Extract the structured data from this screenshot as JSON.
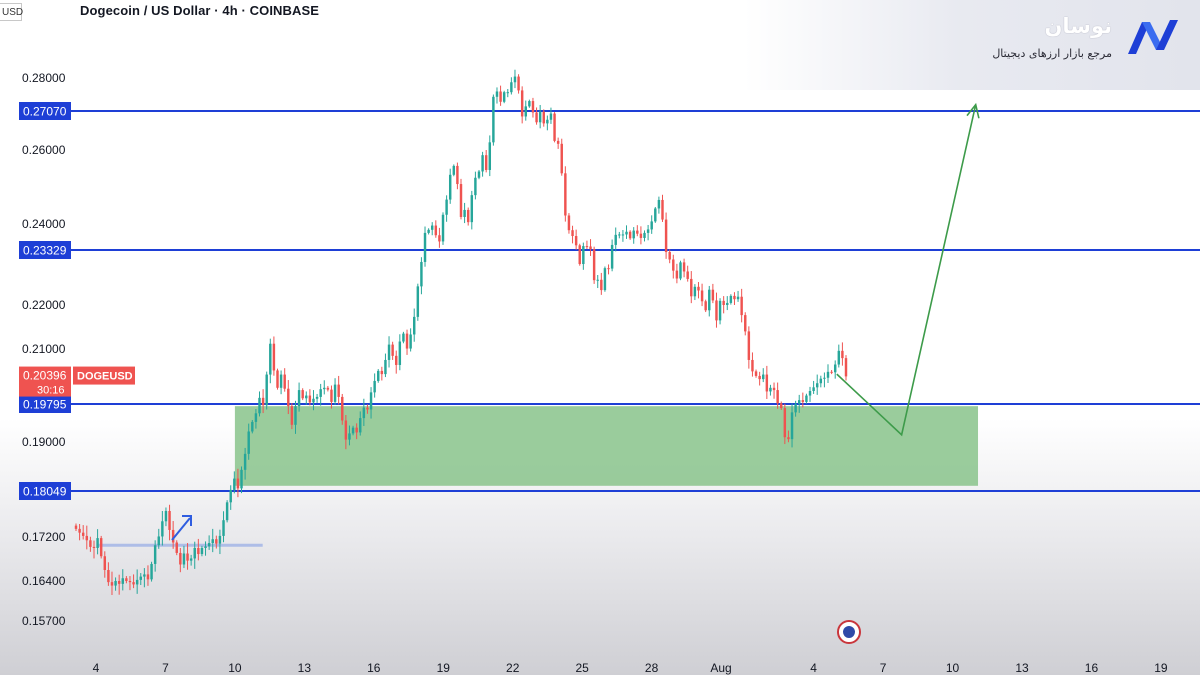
{
  "header": {
    "title": "Dogecoin / US Dollar · 4h · COINBASE",
    "corner_label": "USD"
  },
  "brand": {
    "name": "نوسان",
    "subtitle": "مرجع بازار ارزهای دیجیتال",
    "logo_icon": "nosan-logo-icon"
  },
  "colors": {
    "bull": "#26a69a",
    "bear": "#ef5350",
    "level_line": "#1e3fd6",
    "zone_fill": "#8fc791",
    "projection": "#3d9b4a",
    "price_tag": "#ef5350"
  },
  "chart_data": {
    "type": "candlestick",
    "title": "Dogecoin / US Dollar · 4h · COINBASE",
    "y_axis": {
      "ticks": [
        "0.28000",
        "0.26000",
        "0.24000",
        "0.22000",
        "0.21000",
        "0.19000",
        "0.17200",
        "0.16400",
        "0.15700"
      ],
      "tick_values": [
        0.28,
        0.26,
        0.24,
        0.22,
        0.21,
        0.19,
        0.172,
        0.164,
        0.157
      ]
    },
    "x_axis": {
      "ticks": [
        "4",
        "7",
        "10",
        "13",
        "16",
        "19",
        "22",
        "25",
        "28",
        "Aug",
        "4",
        "7",
        "10",
        "13",
        "16",
        "19"
      ],
      "day_index": [
        4,
        7,
        10,
        13,
        16,
        19,
        22,
        25,
        28,
        31,
        35,
        38,
        41,
        44,
        47,
        50
      ]
    },
    "levels": [
      {
        "label": "0.27070",
        "value": 0.2707
      },
      {
        "label": "0.23329",
        "value": 0.23329
      },
      {
        "label": "0.19795",
        "value": 0.19795
      },
      {
        "label": "0.18049",
        "value": 0.18049
      }
    ],
    "current_price": {
      "symbol": "DOGEUSD",
      "price": "0.20396",
      "countdown": "30:16",
      "value": 0.20396
    },
    "demand_zone": {
      "from_day": 10.0,
      "to_day": 42.1,
      "top": 0.1975,
      "bottom": 0.1815
    },
    "minor_level": {
      "value": 0.1705,
      "from_day": 4.1,
      "to_day": 11.2
    },
    "projection": [
      {
        "day": 36.0,
        "price": 0.2045
      },
      {
        "day": 38.8,
        "price": 0.1915
      },
      {
        "day": 42.0,
        "price": 0.2725
      }
    ],
    "candles_close": [
      0.1735,
      0.1728,
      0.1722,
      0.1714,
      0.1702,
      0.17,
      0.1718,
      0.1685,
      0.166,
      0.1638,
      0.1632,
      0.164,
      0.1635,
      0.1645,
      0.164,
      0.1638,
      0.1634,
      0.1642,
      0.1648,
      0.1652,
      0.1643,
      0.1671,
      0.1705,
      0.1721,
      0.1749,
      0.1768,
      0.1733,
      0.171,
      0.1691,
      0.167,
      0.169,
      0.1677,
      0.1681,
      0.17,
      0.1689,
      0.17,
      0.1703,
      0.1709,
      0.1716,
      0.1708,
      0.1722,
      0.1751,
      0.1784,
      0.1807,
      0.1829,
      0.181,
      0.1846,
      0.1877,
      0.1922,
      0.1942,
      0.196,
      0.1993,
      0.1977,
      0.2044,
      0.2112,
      0.2053,
      0.2015,
      0.2044,
      0.2013,
      0.1975,
      0.1936,
      0.1975,
      0.201,
      0.1992,
      0.1998,
      0.1983,
      0.1991,
      0.1995,
      0.2012,
      0.2015,
      0.2011,
      0.1984,
      0.2022,
      0.1995,
      0.1945,
      0.1905,
      0.1918,
      0.193,
      0.192,
      0.195,
      0.1972,
      0.1968,
      0.2005,
      0.203,
      0.2052,
      0.2045,
      0.2076,
      0.211,
      0.2085,
      0.2065,
      0.2117,
      0.2135,
      0.2101,
      0.2133,
      0.2173,
      0.2245,
      0.2304,
      0.2377,
      0.2385,
      0.2396,
      0.2371,
      0.2355,
      0.2425,
      0.2466,
      0.2533,
      0.2557,
      0.2508,
      0.2419,
      0.2438,
      0.2405,
      0.2478,
      0.2525,
      0.2542,
      0.2586,
      0.2546,
      0.2621,
      0.2747,
      0.2762,
      0.2733,
      0.276,
      0.276,
      0.2788,
      0.2804,
      0.2765,
      0.2692,
      0.272,
      0.2735,
      0.2703,
      0.2676,
      0.2705,
      0.2673,
      0.2683,
      0.27,
      0.2625,
      0.2617,
      0.2537,
      0.2423,
      0.2384,
      0.2369,
      0.2345,
      0.2299,
      0.2343,
      0.2342,
      0.2335,
      0.226,
      0.2261,
      0.2236,
      0.2289,
      0.2288,
      0.2346,
      0.2372,
      0.2373,
      0.2373,
      0.238,
      0.2363,
      0.2383,
      0.2375,
      0.2364,
      0.2377,
      0.2386,
      0.2407,
      0.2442,
      0.2465,
      0.2412,
      0.2328,
      0.231,
      0.2283,
      0.2264,
      0.2303,
      0.2281,
      0.2263,
      0.2221,
      0.2244,
      0.2235,
      0.2209,
      0.2188,
      0.2237,
      0.2211,
      0.2165,
      0.221,
      0.22,
      0.2205,
      0.2222,
      0.2214,
      0.222,
      0.2177,
      0.214,
      0.2076,
      0.2051,
      0.2041,
      0.2034,
      0.2044,
      0.2007,
      0.2015,
      0.201,
      0.1981,
      0.1971,
      0.191,
      0.1906,
      0.1962,
      0.198,
      0.1988,
      0.1984,
      0.1998,
      0.2008,
      0.2016,
      0.2025,
      0.2035,
      0.2037,
      0.205,
      0.2049,
      0.2066,
      0.2096,
      0.208,
      0.204
    ]
  }
}
